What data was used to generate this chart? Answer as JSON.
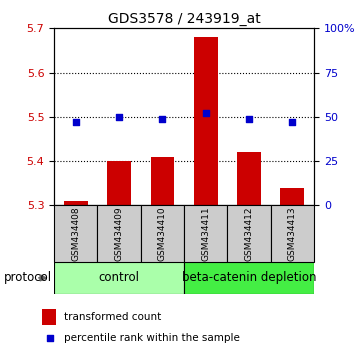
{
  "title": "GDS3578 / 243919_at",
  "samples": [
    "GSM434408",
    "GSM434409",
    "GSM434410",
    "GSM434411",
    "GSM434412",
    "GSM434413"
  ],
  "transformed_count": [
    5.31,
    5.4,
    5.41,
    5.68,
    5.42,
    5.34
  ],
  "percentile_rank": [
    47,
    50,
    49,
    52,
    49,
    47
  ],
  "bar_baseline": 5.3,
  "ylim_left": [
    5.3,
    5.7
  ],
  "ylim_right": [
    0,
    100
  ],
  "yticks_left": [
    5.3,
    5.4,
    5.5,
    5.6,
    5.7
  ],
  "yticks_right": [
    0,
    25,
    50,
    75,
    100
  ],
  "ytick_labels_right": [
    "0",
    "25",
    "50",
    "75",
    "100%"
  ],
  "bar_color": "#cc0000",
  "point_color": "#0000cc",
  "control_samples": 3,
  "protocol_groups": [
    "control",
    "beta-catenin depletion"
  ],
  "protocol_colors_light": "#aaffaa",
  "protocol_colors_dark": "#44ee44",
  "protocol_label": "protocol",
  "legend_bar_label": "transformed count",
  "legend_point_label": "percentile rank within the sample",
  "left_axis_color": "#cc0000",
  "right_axis_color": "#0000cc",
  "title_fontsize": 10,
  "tick_fontsize": 8,
  "sample_fontsize": 6.5,
  "protocol_fontsize": 8.5,
  "legend_fontsize": 7.5,
  "sample_box_color": "#cccccc",
  "grid_dotted_color": "#555555"
}
